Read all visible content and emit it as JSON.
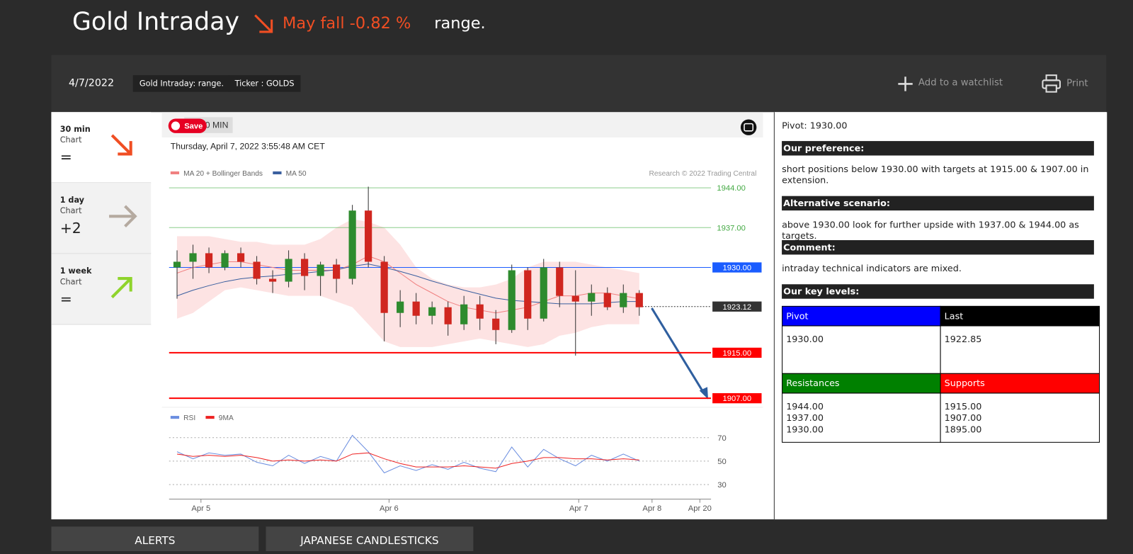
{
  "header": {
    "title": "Gold Intraday",
    "change_text": "May fall",
    "change_value": "-0.82 %",
    "status": "range."
  },
  "toolbar": {
    "date": "4/7/2022",
    "tags": [
      "Gold Intraday: range.",
      "Ticker : GOLDS"
    ],
    "watchlist": "Add to a watchlist",
    "print": "Print"
  },
  "timeframes": [
    {
      "period": "30 min",
      "label": "Chart",
      "value": "="
    },
    {
      "period": "1 day",
      "label": "Chart",
      "value": "+2"
    },
    {
      "period": "1 week",
      "label": "Chart",
      "value": "="
    }
  ],
  "chart_data": [
    {
      "type": "candlestick",
      "interval": "0 MIN",
      "save": "Save",
      "timestamp": "Thursday, April 7, 2022 3:55:48 AM CET",
      "watermark": "Research © 2022 Trading Central",
      "xlim": [
        -0.5,
        33.5
      ],
      "ylim": [
        1905.8,
        1946.5
      ],
      "up_color": "#2e8b2e",
      "down_color": "#d0261f",
      "band_color": "#fde3e3",
      "open": [
        1930,
        1931,
        1932.5,
        1930,
        1932.5,
        1931,
        1928,
        1927.5,
        1931.5,
        1928.5,
        1930.5,
        1928,
        1940,
        1931,
        1922,
        1924,
        1921.5,
        1923,
        1920,
        1923.5,
        1921,
        1919,
        1929.5,
        1921,
        1930,
        1925,
        1924,
        1925.5,
        1923,
        1925.5
      ],
      "high": [
        1933,
        1934,
        1933.5,
        1933,
        1933.5,
        1932,
        1929.5,
        1933,
        1932.5,
        1931,
        1931.5,
        1941,
        1944.2,
        1932,
        1926,
        1925.5,
        1924,
        1924,
        1925,
        1925,
        1922.5,
        1930.5,
        1930,
        1931.5,
        1931,
        1929.5,
        1927,
        1926.5,
        1927,
        1926
      ],
      "low": [
        1924.5,
        1928,
        1929,
        1929.5,
        1930,
        1927,
        1925.5,
        1926.5,
        1926,
        1925,
        1925.5,
        1927,
        1930,
        1917,
        1919.5,
        1920,
        1920,
        1918,
        1919,
        1919,
        1916.5,
        1918.5,
        1919,
        1920.5,
        1923,
        1914.5,
        1921.5,
        1922.5,
        1922,
        1921.5
      ],
      "close": [
        1931,
        1932.5,
        1930,
        1932.5,
        1931,
        1928,
        1927.5,
        1931.5,
        1928.5,
        1930.5,
        1928,
        1940,
        1931,
        1922,
        1924,
        1921.5,
        1923,
        1920,
        1923.5,
        1921,
        1919,
        1929.5,
        1921,
        1930,
        1925,
        1924,
        1925.5,
        1923,
        1925.5,
        1923
      ],
      "series": [
        {
          "name": "MA 20 + Bollinger Bands",
          "color": "#f08080",
          "values": [
            1929,
            1930,
            1930.5,
            1931,
            1931,
            1930.5,
            1930,
            1929.5,
            1929.5,
            1929.5,
            1929.5,
            1930.5,
            1932,
            1931,
            1929,
            1927,
            1925.5,
            1924,
            1923,
            1922.5,
            1922,
            1922.5,
            1923,
            1924,
            1925,
            1925,
            1925.5,
            1925.5,
            1925,
            1924.5
          ],
          "upper": [
            1935.5,
            1935.5,
            1935.5,
            1935,
            1934.5,
            1934.5,
            1934,
            1934,
            1934,
            1935,
            1937,
            1938.5,
            1938,
            1937,
            1934,
            1930,
            1928,
            1927,
            1926.5,
            1926.5,
            1927,
            1928,
            1930,
            1931,
            1931,
            1931,
            1930.5,
            1930,
            1929.5,
            1929
          ],
          "lower": [
            1921,
            1922,
            1924,
            1926,
            1926.5,
            1926,
            1925.5,
            1925,
            1925,
            1925,
            1924,
            1923,
            1920,
            1917,
            1916,
            1916,
            1916,
            1916.5,
            1917,
            1917.5,
            1917,
            1916.5,
            1916,
            1916.5,
            1918,
            1918.5,
            1919.5,
            1920,
            1920,
            1920
          ]
        },
        {
          "name": "MA 50",
          "color": "#3a5f9f",
          "values": [
            1925,
            1926,
            1926.8,
            1927.5,
            1928,
            1928.3,
            1928.5,
            1928.8,
            1929,
            1929.3,
            1929.6,
            1930.2,
            1930.6,
            1930,
            1929.3,
            1928.5,
            1927.6,
            1926.8,
            1926,
            1925.3,
            1924.6,
            1924.2,
            1924,
            1923.8,
            1923.6,
            1923.6,
            1923.6,
            1923.8,
            1924,
            1924
          ]
        }
      ],
      "levels": [
        {
          "value": 1944,
          "label": "1944.00",
          "color": "#5cb85c",
          "box": false,
          "dashed": false,
          "line_width": 1
        },
        {
          "value": 1937,
          "label": "1937.00",
          "color": "#5cb85c",
          "box": false,
          "dashed": false,
          "line_width": 1
        },
        {
          "value": 1930,
          "label": "1930.00",
          "color": "#1a5cff",
          "box": true,
          "dashed": false,
          "line_width": 1
        },
        {
          "value": 1923.12,
          "label": "1923.12",
          "color": "#333333",
          "box": true,
          "dashed": true,
          "line_width": 1
        },
        {
          "value": 1915,
          "label": "1915.00",
          "color": "#ff0000",
          "box": true,
          "dashed": false,
          "line_width": 2
        },
        {
          "value": 1907,
          "label": "1907.00",
          "color": "#ff0000",
          "box": true,
          "dashed": false,
          "line_width": 2
        }
      ]
    },
    {
      "type": "line",
      "xlim": [
        -0.5,
        33.5
      ],
      "ylim": [
        23.8,
        76.2
      ],
      "yticks": [
        30,
        50,
        70
      ],
      "xticks": [
        {
          "value": 1.5,
          "label": "Apr 5"
        },
        {
          "value": 13.3,
          "label": "Apr 6"
        },
        {
          "value": 25.2,
          "label": "Apr 7"
        },
        {
          "value": 29.8,
          "label": "Apr 8"
        },
        {
          "value": 32.8,
          "label": "Apr 20"
        }
      ],
      "series": [
        {
          "name": "RSI",
          "color": "#6b8ee0",
          "values": [
            58,
            52,
            57,
            55,
            56,
            49,
            46,
            55,
            48,
            54,
            50,
            72,
            58,
            40,
            46,
            42,
            47,
            43,
            49,
            44,
            41,
            62,
            45,
            60,
            52,
            46,
            55,
            50,
            56,
            50
          ]
        },
        {
          "name": "9MA",
          "color": "#ee2222",
          "values": [
            56,
            54,
            55,
            54,
            55,
            53,
            50,
            51,
            50,
            51,
            50,
            56,
            57,
            52,
            48,
            45,
            45,
            45,
            46,
            45,
            44,
            48,
            50,
            53,
            53,
            52,
            52,
            51,
            52,
            51
          ]
        }
      ]
    }
  ],
  "analysis": {
    "pivot": "Pivot: 1930.00",
    "sections": [
      {
        "heading": "Our preference:",
        "text": "short positions below 1930.00 with targets at 1915.00 & 1907.00 in extension."
      },
      {
        "heading": "Alternative scenario:",
        "text": "above 1930.00 look for further upside with 1937.00 & 1944.00 as targets."
      },
      {
        "heading": "Comment:",
        "text": "intraday technical indicators are mixed."
      }
    ],
    "key_levels_heading": "Our key levels:",
    "key_levels": {
      "pivot_header": "Pivot",
      "pivot": "1930.00",
      "last_header": "Last",
      "last": "1922.85",
      "resistances_header": "Resistances",
      "resistances": [
        "1944.00",
        "1937.00",
        "1930.00"
      ],
      "supports_header": "Supports",
      "supports": [
        "1915.00",
        "1907.00",
        "1895.00"
      ]
    }
  },
  "tabs": [
    "ALERTS",
    "JAPANESE CANDLESTICKS"
  ]
}
